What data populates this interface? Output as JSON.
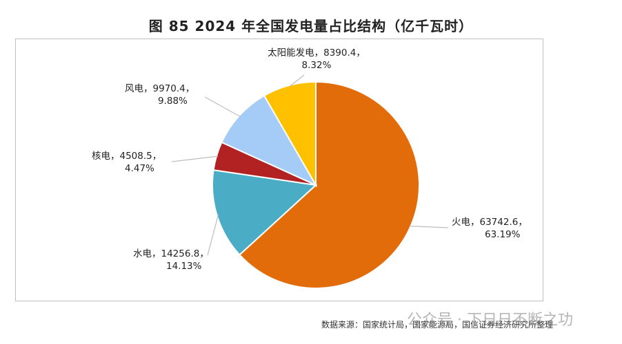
{
  "chart_data": {
    "type": "pie",
    "title": "图 85 2024 年全国发电量占比结构（亿千瓦时）",
    "slices": [
      {
        "label": "火电，63742.6，63.19%",
        "name": "火电",
        "value": 63742.6,
        "percent": 63.19,
        "color": "#E36C0A"
      },
      {
        "label": "水电，14256.8，14.13%",
        "name": "水电",
        "value": 14256.8,
        "percent": 14.13,
        "color": "#4BACC6"
      },
      {
        "label": "核电，4508.5，4.47%",
        "name": "核电",
        "value": 4508.5,
        "percent": 4.47,
        "color": "#B22222"
      },
      {
        "label": "风电，9970.4，9.88%",
        "name": "风电",
        "value": 9970.4,
        "percent": 9.88,
        "color": "#A5CBF7"
      },
      {
        "label": "太阳能发电，8390.4，8.32%",
        "name": "太阳能发电",
        "value": 8390.4,
        "percent": 8.32,
        "color": "#FFC000"
      }
    ]
  },
  "source": "数据来源：国家统计局，国家能源局，国信证券经济研究所整理",
  "watermark": "公众号 · 下日日不断之功"
}
